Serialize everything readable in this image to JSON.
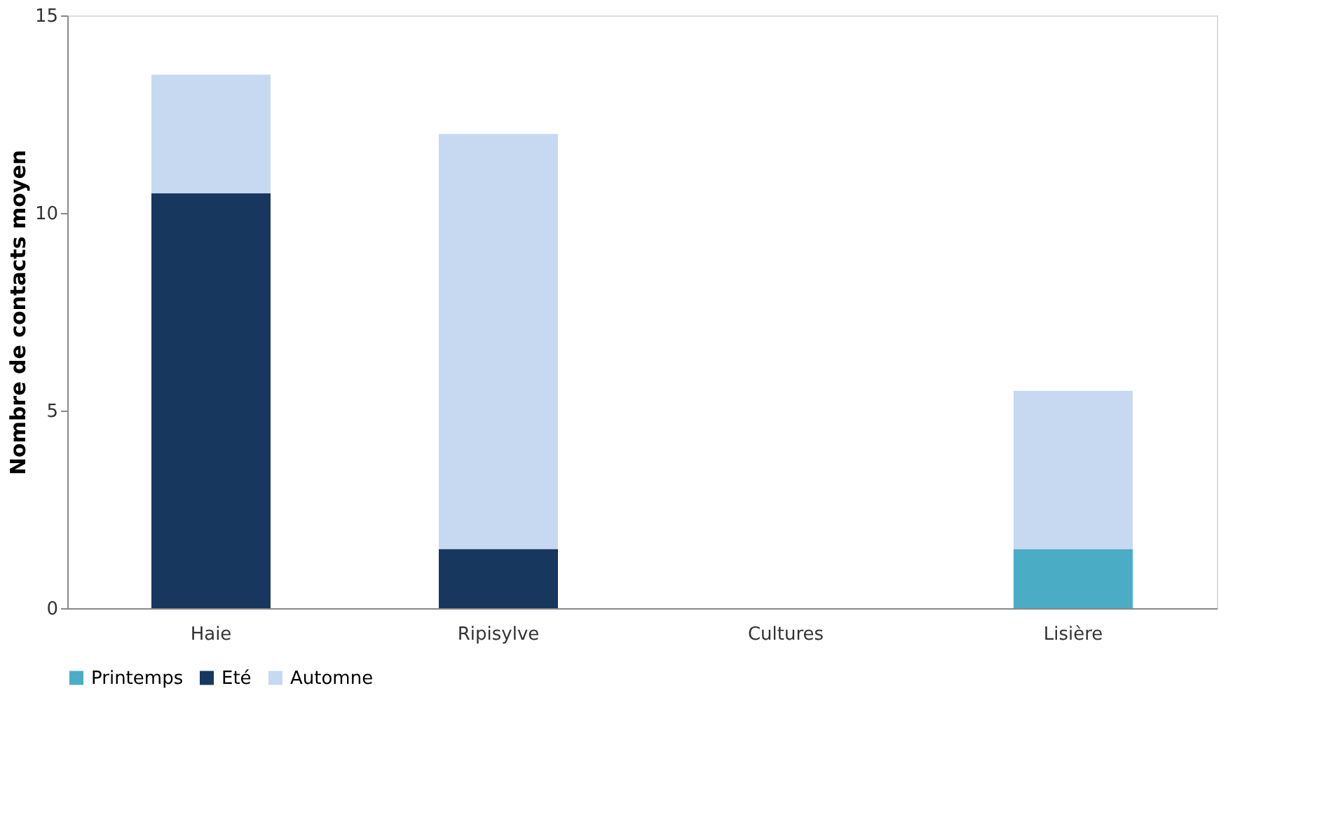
{
  "chart_data": {
    "type": "bar",
    "stacked": true,
    "ylabel": "Nombre de contacts moyen",
    "categories": [
      "Haie",
      "Ripisylve",
      "Cultures",
      "Lisière"
    ],
    "series": [
      {
        "name": "Printemps",
        "color": "#4bacc6",
        "values": [
          0,
          0,
          0,
          1.5
        ]
      },
      {
        "name": "Eté",
        "color": "#17375e",
        "values": [
          10.5,
          1.5,
          0,
          0
        ]
      },
      {
        "name": "Automne",
        "color": "#c6d9f1",
        "values": [
          3,
          10.5,
          0,
          4
        ]
      }
    ],
    "ylim": [
      0,
      15
    ],
    "yticks": [
      0,
      5,
      10,
      15
    ],
    "grid": false,
    "legend": "bottom"
  }
}
